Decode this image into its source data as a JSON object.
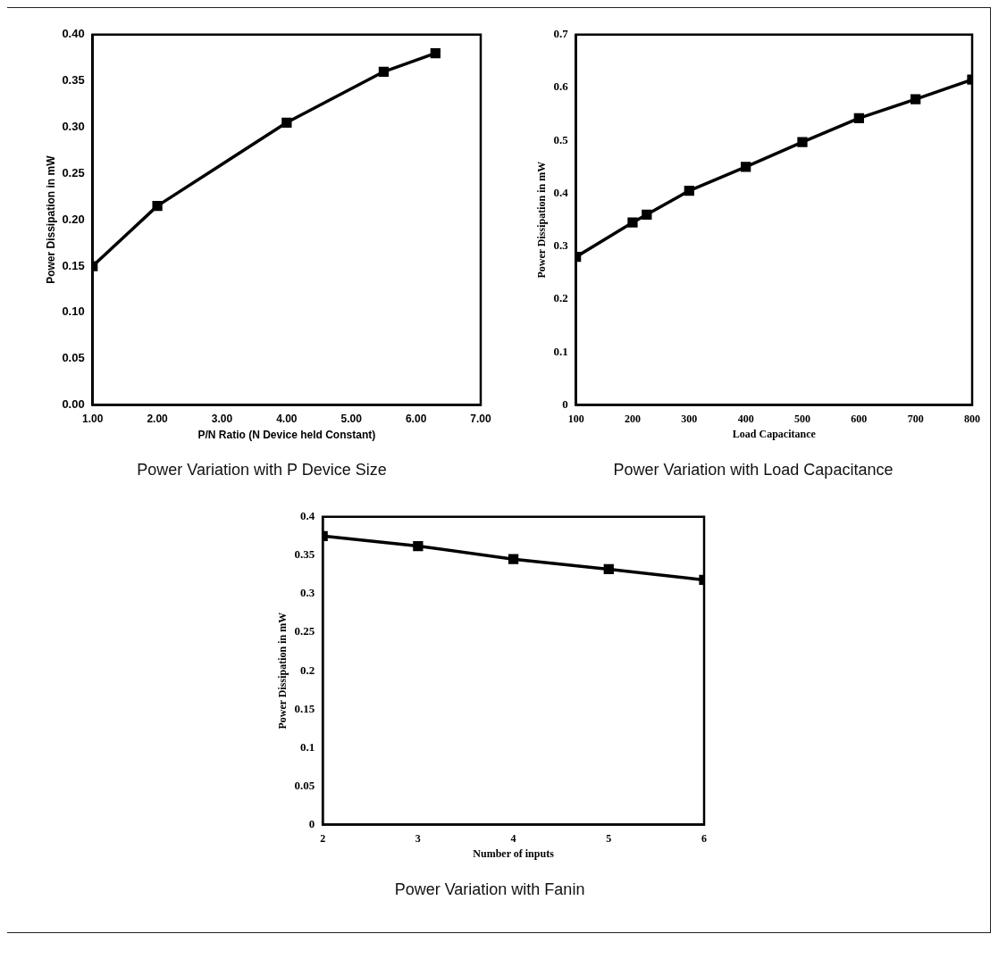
{
  "chart_data": [
    {
      "type": "line",
      "title": "Power Variation with P Device Size",
      "xlabel": "P/N Ratio (N Device held Constant)",
      "ylabel": "Power Dissipation in mW",
      "marker": "square",
      "grid": false,
      "x": [
        1,
        2,
        4,
        5.5,
        6.3
      ],
      "values": [
        0.15,
        0.215,
        0.305,
        0.36,
        0.38
      ],
      "color": "#000000",
      "xlim": [
        1,
        7
      ],
      "xticks": [
        {
          "value": 1,
          "label": "1.00"
        },
        {
          "value": 2,
          "label": "2.00"
        },
        {
          "value": 3,
          "label": "3.00"
        },
        {
          "value": 4,
          "label": "4.00"
        },
        {
          "value": 5,
          "label": "5.00"
        },
        {
          "value": 6,
          "label": "6.00"
        },
        {
          "value": 7,
          "label": "7.00"
        }
      ],
      "ylim": [
        0,
        0.4
      ],
      "yticks": [
        {
          "value": 0,
          "label": "0.00"
        },
        {
          "value": 0.05,
          "label": "0.05"
        },
        {
          "value": 0.1,
          "label": "0.10"
        },
        {
          "value": 0.15,
          "label": "0.15"
        },
        {
          "value": 0.2,
          "label": "0.20"
        },
        {
          "value": 0.25,
          "label": "0.25"
        },
        {
          "value": 0.3,
          "label": "0.30"
        },
        {
          "value": 0.35,
          "label": "0.35"
        },
        {
          "value": 0.4,
          "label": "0.40"
        }
      ]
    },
    {
      "type": "line",
      "title": "Power Variation with Load Capacitance",
      "xlabel": "Load Capacitance",
      "ylabel": "Power Dissipation in mW",
      "marker": "square",
      "grid": false,
      "x": [
        100,
        200,
        225,
        300,
        400,
        500,
        600,
        700,
        800
      ],
      "values": [
        0.28,
        0.345,
        0.36,
        0.405,
        0.45,
        0.497,
        0.542,
        0.578,
        0.615
      ],
      "color": "#000000",
      "xlim": [
        100,
        800
      ],
      "xticks": [
        100,
        200,
        300,
        400,
        500,
        600,
        700,
        800
      ],
      "ylim": [
        0,
        0.7
      ],
      "yticks": [
        0,
        0.1,
        0.2,
        0.3,
        0.4,
        0.5,
        0.6,
        0.7
      ]
    },
    {
      "type": "line",
      "title": "Power Variation with Fanin",
      "xlabel": "Number of inputs",
      "ylabel": "Power Dissipation in mW",
      "marker": "square",
      "grid": false,
      "x": [
        2,
        3,
        4,
        5,
        6
      ],
      "values": [
        0.375,
        0.362,
        0.345,
        0.332,
        0.318
      ],
      "color": "#000000",
      "xlim": [
        2,
        6
      ],
      "xticks": [
        2,
        3,
        4,
        5,
        6
      ],
      "ylim": [
        0,
        0.4
      ],
      "yticks": [
        0,
        0.05,
        0.1,
        0.15,
        0.2,
        0.25,
        0.3,
        0.35,
        0.4
      ]
    }
  ]
}
